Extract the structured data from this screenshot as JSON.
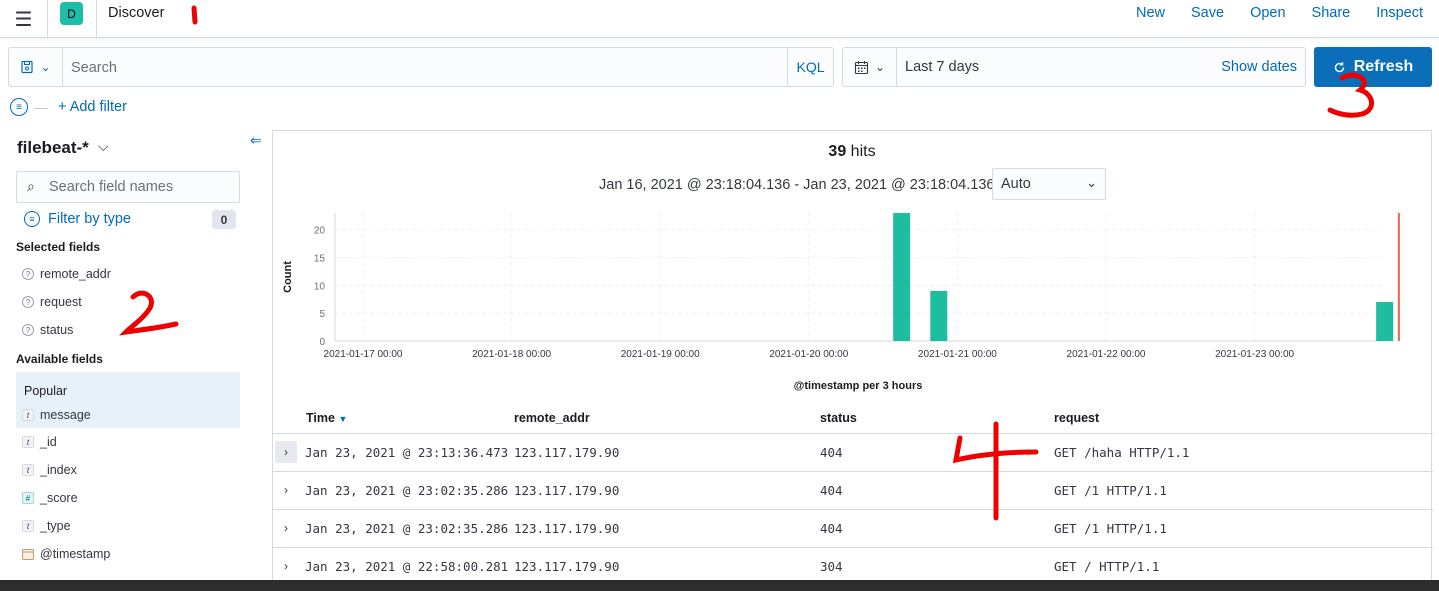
{
  "header": {
    "space_initial": "D",
    "app_title": "Discover",
    "links": [
      "New",
      "Save",
      "Open",
      "Share",
      "Inspect"
    ]
  },
  "query_bar": {
    "placeholder": "Search",
    "language": "KQL"
  },
  "time_picker": {
    "range": "Last 7 days",
    "show_dates": "Show dates",
    "refresh_label": "Refresh"
  },
  "filters": {
    "add_filter": "+ Add filter"
  },
  "sidebar": {
    "index_pattern": "filebeat-*",
    "search_placeholder": "Search field names",
    "filter_by_type": "Filter by type",
    "filter_count": "0",
    "selected_title": "Selected fields",
    "selected_fields": [
      {
        "name": "remote_addr",
        "type": "?"
      },
      {
        "name": "request",
        "type": "?"
      },
      {
        "name": "status",
        "type": "?"
      }
    ],
    "available_title": "Available fields",
    "popular_label": "Popular",
    "popular_fields": [
      {
        "name": "message",
        "type": "t"
      }
    ],
    "available_fields": [
      {
        "name": "_id",
        "type": "t"
      },
      {
        "name": "_index",
        "type": "t"
      },
      {
        "name": "_score",
        "type": "#"
      },
      {
        "name": "_type",
        "type": "t"
      },
      {
        "name": "@timestamp",
        "type": "date"
      }
    ]
  },
  "histogram": {
    "hits_count": "39",
    "hits_label": "hits",
    "date_range": "Jan 16, 2021 @ 23:18:04.136 - Jan 23, 2021 @ 23:18:04.136",
    "interval": "Auto",
    "colors": {
      "bar": "#1ebda0",
      "now_marker": "#e7664c"
    }
  },
  "chart_data": {
    "type": "bar",
    "xlabel": "@timestamp per 3 hours",
    "ylabel": "Count",
    "ylim": [
      0,
      23
    ],
    "yticks": [
      0,
      5,
      10,
      15,
      20
    ],
    "x_ticks": [
      "2021-01-17 00:00",
      "2021-01-18 00:00",
      "2021-01-19 00:00",
      "2021-01-20 00:00",
      "2021-01-21 00:00",
      "2021-01-22 00:00",
      "2021-01-23 00:00"
    ],
    "bars": [
      {
        "x": "2021-01-20 15:00",
        "value": 23
      },
      {
        "x": "2021-01-20 21:00",
        "value": 9
      },
      {
        "x": "2021-01-23 21:00",
        "value": 7
      }
    ],
    "grid": true
  },
  "table": {
    "columns": [
      "Time",
      "remote_addr",
      "status",
      "request"
    ],
    "rows": [
      {
        "time": "Jan 23, 2021 @ 23:13:36.473",
        "remote_addr": "123.117.179.90",
        "status": "404",
        "request": "GET /haha HTTP/1.1"
      },
      {
        "time": "Jan 23, 2021 @ 23:02:35.286",
        "remote_addr": "123.117.179.90",
        "status": "404",
        "request": "GET /1 HTTP/1.1"
      },
      {
        "time": "Jan 23, 2021 @ 23:02:35.286",
        "remote_addr": "123.117.179.90",
        "status": "404",
        "request": "GET /1 HTTP/1.1"
      },
      {
        "time": "Jan 23, 2021 @ 22:58:00.281",
        "remote_addr": "123.117.179.90",
        "status": "304",
        "request": "GET / HTTP/1.1"
      }
    ]
  }
}
